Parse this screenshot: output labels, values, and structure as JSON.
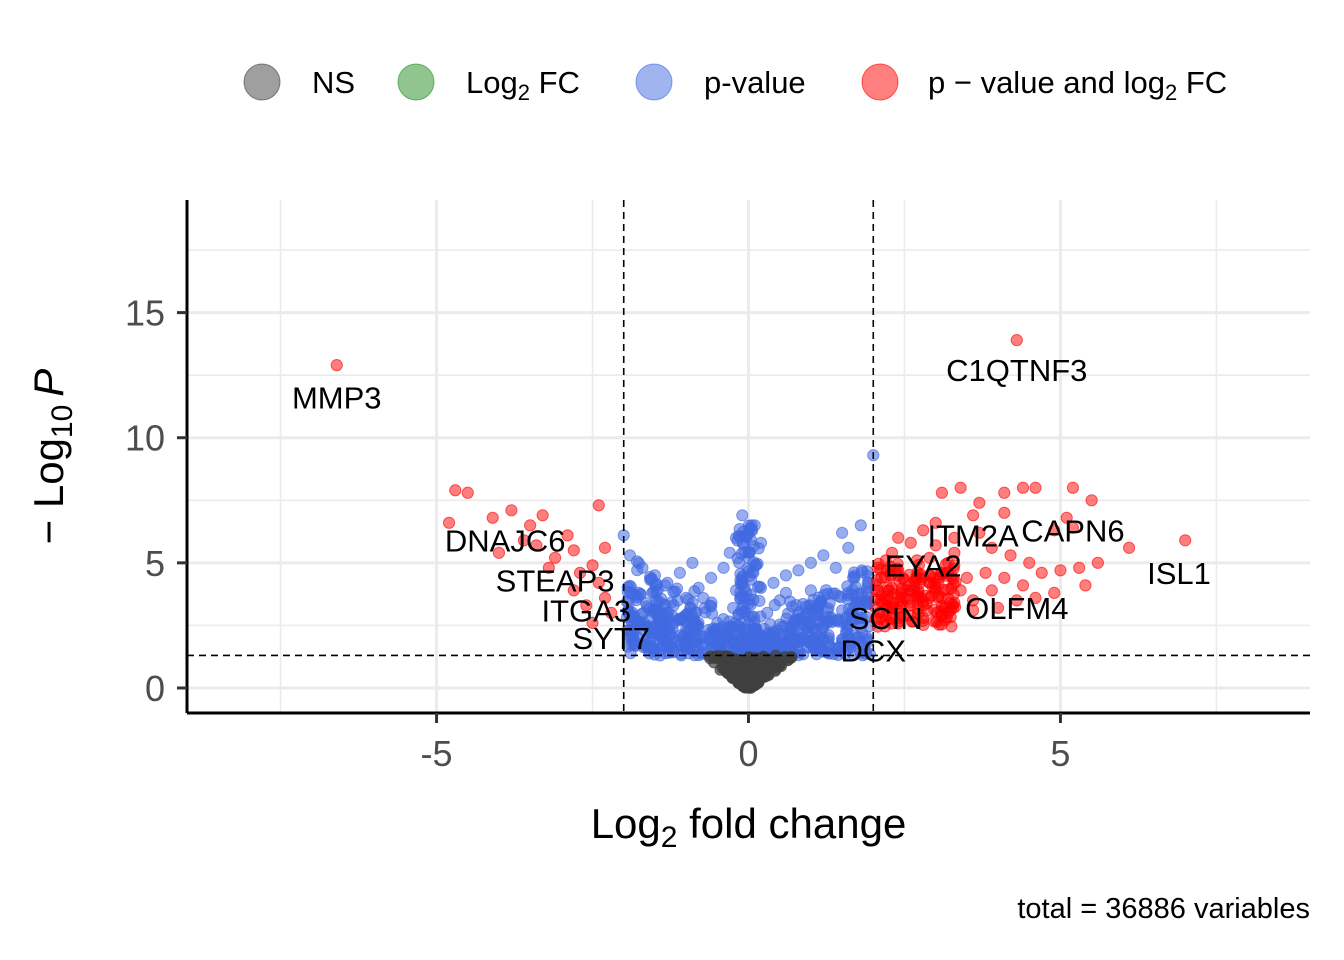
{
  "chart_data": {
    "type": "scatter",
    "title": "",
    "xlabel": "Log2 fold change",
    "xlabel_main": "Log",
    "xlabel_sub": "2",
    "xlabel_rest": " fold change",
    "ylabel": "-Log10 P",
    "ylabel_main": "− Log",
    "ylabel_sub": "10",
    "ylabel_rest": "P",
    "xlim": [
      -9,
      9
    ],
    "ylim": [
      -1,
      19.5
    ],
    "xticks": [
      -5,
      0,
      5
    ],
    "xtick_labels": [
      "-5",
      "0",
      "5"
    ],
    "yticks": [
      0,
      5,
      10,
      15
    ],
    "ytick_labels": [
      "0",
      "5",
      "10",
      "15"
    ],
    "grid": true,
    "fc_cutoff": 2,
    "p_cutoff": 1.3,
    "legend_position": "top",
    "legend": [
      {
        "key": "ns",
        "label": "NS",
        "color": "#404040"
      },
      {
        "key": "fc",
        "label": "Log2 FC",
        "label_main": "Log",
        "label_sub": "2",
        "label_rest": " FC",
        "color": "#228b22"
      },
      {
        "key": "p",
        "label": "p-value",
        "color": "#4169e1"
      },
      {
        "key": "both",
        "label": "p − value and log2 FC",
        "label_main": "p − value and log",
        "label_sub": "2",
        "label_rest": " FC",
        "color": "#ff0000"
      }
    ],
    "caption": "total = 36886 variables",
    "labeled_points": [
      {
        "gene": "MMP3",
        "x": -6.6,
        "y": 12.9,
        "label_x": -6.6,
        "label_y": 11.6
      },
      {
        "gene": "C1QTNF3",
        "x": 4.3,
        "y": 13.9,
        "label_x": 4.3,
        "label_y": 12.7
      },
      {
        "gene": "DNAJC6",
        "x": -3.0,
        "y": 6.0,
        "label_x": -3.9,
        "label_y": 5.9
      },
      {
        "gene": "STEAP3",
        "x": -2.6,
        "y": 4.5,
        "label_x": -3.1,
        "label_y": 4.3
      },
      {
        "gene": "ITGA3",
        "x": -2.5,
        "y": 3.2,
        "label_x": -2.6,
        "label_y": 3.1
      },
      {
        "gene": "SYT7",
        "x": -2.2,
        "y": 2.5,
        "label_x": -2.2,
        "label_y": 2.0
      },
      {
        "gene": "ITM2A",
        "x": 3.5,
        "y": 6.4,
        "label_x": 3.6,
        "label_y": 6.1
      },
      {
        "gene": "CAPN6",
        "x": 5.2,
        "y": 6.4,
        "label_x": 5.2,
        "label_y": 6.3
      },
      {
        "gene": "EYA2",
        "x": 2.5,
        "y": 4.8,
        "label_x": 2.8,
        "label_y": 4.9
      },
      {
        "gene": "ISL1",
        "x": 7.0,
        "y": 5.9,
        "label_x": 6.9,
        "label_y": 4.6
      },
      {
        "gene": "OLFM4",
        "x": 4.0,
        "y": 3.3,
        "label_x": 4.3,
        "label_y": 3.2
      },
      {
        "gene": "SCIN",
        "x": 2.2,
        "y": 2.9,
        "label_x": 2.2,
        "label_y": 2.8
      },
      {
        "gene": "DCX",
        "x": 2.1,
        "y": 1.6,
        "label_x": 2.0,
        "label_y": 1.5
      }
    ],
    "highlight_points": {
      "both": [
        [
          -4.7,
          7.9
        ],
        [
          -4.5,
          7.8
        ],
        [
          -4.8,
          6.6
        ],
        [
          -4.1,
          6.8
        ],
        [
          -3.8,
          7.1
        ],
        [
          -3.5,
          6.5
        ],
        [
          -3.3,
          6.9
        ],
        [
          -3.6,
          5.9
        ],
        [
          -3.4,
          5.7
        ],
        [
          -2.9,
          6.1
        ],
        [
          -2.4,
          7.3
        ],
        [
          -2.8,
          5.5
        ],
        [
          -3.1,
          5.2
        ],
        [
          -2.5,
          4.9
        ],
        [
          -2.7,
          4.6
        ],
        [
          -2.3,
          5.6
        ],
        [
          -2.4,
          4.2
        ],
        [
          -2.8,
          3.9
        ],
        [
          -2.3,
          3.6
        ],
        [
          -2.6,
          3.3
        ],
        [
          -2.2,
          3.0
        ],
        [
          -2.5,
          2.6
        ],
        [
          -4.0,
          5.4
        ],
        [
          -3.2,
          4.8
        ],
        [
          2.2,
          5.1
        ],
        [
          2.4,
          4.7
        ],
        [
          2.7,
          4.4
        ],
        [
          2.3,
          4.0
        ],
        [
          3.0,
          5.7
        ],
        [
          2.9,
          4.2
        ],
        [
          2.5,
          3.6
        ],
        [
          2.8,
          3.3
        ],
        [
          3.2,
          3.0
        ],
        [
          2.6,
          2.9
        ],
        [
          3.4,
          3.9
        ],
        [
          3.1,
          4.6
        ],
        [
          2.3,
          3.2
        ],
        [
          2.2,
          2.7
        ],
        [
          3.6,
          3.5
        ],
        [
          3.9,
          3.9
        ],
        [
          4.1,
          4.4
        ],
        [
          4.4,
          4.1
        ],
        [
          4.7,
          4.6
        ],
        [
          5.0,
          4.7
        ],
        [
          4.9,
          3.8
        ],
        [
          4.6,
          3.6
        ],
        [
          5.4,
          4.1
        ],
        [
          5.6,
          5.0
        ],
        [
          5.3,
          4.8
        ],
        [
          3.3,
          6.0
        ],
        [
          3.7,
          6.2
        ],
        [
          3.9,
          5.6
        ],
        [
          4.2,
          5.3
        ],
        [
          4.5,
          5.0
        ],
        [
          3.1,
          7.8
        ],
        [
          3.4,
          8.0
        ],
        [
          3.7,
          7.4
        ],
        [
          4.1,
          7.8
        ],
        [
          4.4,
          8.0
        ],
        [
          4.6,
          8.0
        ],
        [
          5.2,
          8.0
        ],
        [
          5.5,
          7.5
        ],
        [
          4.1,
          7.0
        ],
        [
          3.0,
          6.6
        ],
        [
          3.3,
          5.4
        ],
        [
          5.1,
          6.8
        ],
        [
          6.1,
          5.6
        ],
        [
          7.0,
          5.9
        ],
        [
          2.9,
          5.2
        ],
        [
          3.5,
          4.4
        ],
        [
          2.6,
          5.8
        ],
        [
          2.4,
          6.0
        ],
        [
          2.9,
          3.6
        ],
        [
          3.3,
          3.4
        ],
        [
          3.6,
          3.1
        ],
        [
          4.0,
          3.2
        ],
        [
          4.3,
          3.5
        ],
        [
          3.8,
          4.6
        ],
        [
          2.7,
          5.1
        ],
        [
          3.0,
          4.0
        ],
        [
          2.5,
          4.3
        ],
        [
          3.2,
          5.0
        ],
        [
          4.9,
          6.3
        ],
        [
          3.6,
          6.9
        ],
        [
          2.8,
          6.3
        ],
        [
          2.3,
          5.4
        ],
        [
          2.4,
          3.1
        ],
        [
          3.1,
          3.6
        ],
        [
          2.6,
          3.9
        ],
        [
          2.8,
          2.8
        ],
        [
          -6.6,
          12.9
        ],
        [
          4.3,
          13.9
        ],
        [
          5.2,
          6.4
        ]
      ],
      "p": [
        [
          2.0,
          9.3
        ],
        [
          1.8,
          6.5
        ],
        [
          1.5,
          6.2
        ],
        [
          1.6,
          5.6
        ],
        [
          1.2,
          5.3
        ],
        [
          1.0,
          5.0
        ],
        [
          0.8,
          4.7
        ],
        [
          0.6,
          4.5
        ],
        [
          0.4,
          4.2
        ],
        [
          1.4,
          4.8
        ],
        [
          1.7,
          4.4
        ],
        [
          1.9,
          4.0
        ],
        [
          1.6,
          3.7
        ],
        [
          1.3,
          3.4
        ],
        [
          1.1,
          3.0
        ],
        [
          0.9,
          2.8
        ],
        [
          0.7,
          2.5
        ],
        [
          1.5,
          3.1
        ],
        [
          1.8,
          2.8
        ],
        [
          1.9,
          3.4
        ],
        [
          0.5,
          3.5
        ],
        [
          0.3,
          3.0
        ],
        [
          0.2,
          5.8
        ],
        [
          0.1,
          6.5
        ],
        [
          -0.1,
          6.9
        ],
        [
          -0.2,
          6.0
        ],
        [
          -0.3,
          5.4
        ],
        [
          -0.4,
          4.8
        ],
        [
          -0.6,
          4.4
        ],
        [
          -0.8,
          4.0
        ],
        [
          -1.0,
          3.6
        ],
        [
          -1.2,
          3.3
        ],
        [
          -1.4,
          3.0
        ],
        [
          -1.6,
          2.7
        ],
        [
          -1.8,
          2.4
        ],
        [
          -1.3,
          4.2
        ],
        [
          -1.5,
          4.5
        ],
        [
          -1.7,
          4.8
        ],
        [
          -1.9,
          5.3
        ],
        [
          -2.0,
          6.1
        ],
        [
          -0.9,
          5.0
        ],
        [
          -0.7,
          3.2
        ],
        [
          -0.5,
          2.6
        ],
        [
          -0.3,
          2.2
        ],
        [
          0.3,
          2.1
        ],
        [
          0.5,
          2.0
        ],
        [
          1.2,
          2.4
        ],
        [
          1.7,
          2.1
        ],
        [
          -1.1,
          2.1
        ],
        [
          -1.9,
          3.8
        ],
        [
          0.6,
          3.8
        ],
        [
          -0.1,
          4.3
        ],
        [
          0.0,
          5.2
        ],
        [
          -0.2,
          3.9
        ],
        [
          0.2,
          4.0
        ],
        [
          1.0,
          3.9
        ],
        [
          -1.1,
          4.6
        ],
        [
          1.4,
          2.7
        ],
        [
          -0.6,
          1.8
        ],
        [
          0.7,
          1.9
        ]
      ]
    }
  }
}
